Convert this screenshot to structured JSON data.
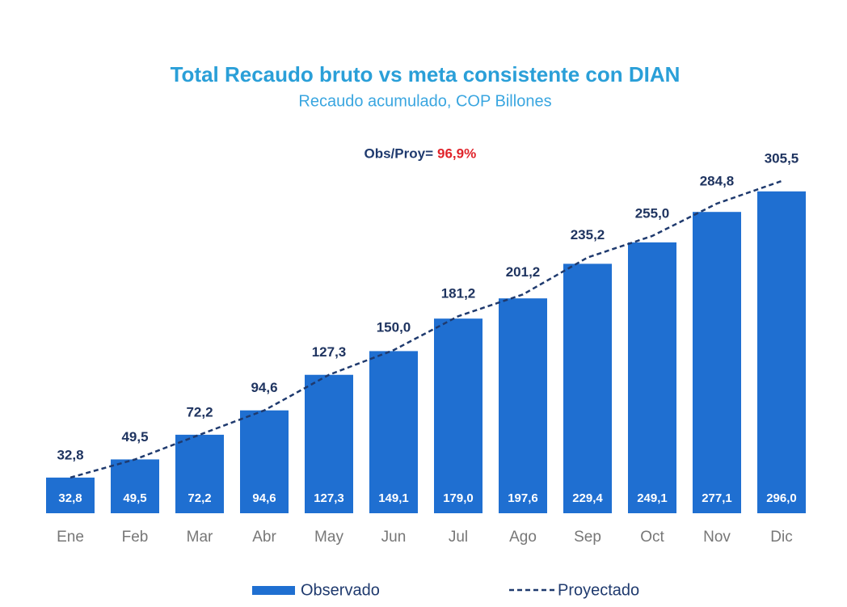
{
  "chart_data": {
    "type": "bar_line",
    "title": "Total Recaudo bruto vs meta consistente con DIAN",
    "subtitle": "Recaudo acumulado, COP Billones",
    "annotation": [
      "Obs/Proy=",
      "96,9%"
    ],
    "categories": [
      "Ene",
      "Feb",
      "Mar",
      "Abr",
      "May",
      "Jun",
      "Jul",
      "Ago",
      "Sep",
      "Oct",
      "Nov",
      "Dic"
    ],
    "series": [
      {
        "name": "Observado",
        "type": "bar",
        "color": "#1f6fd1",
        "values": [
          32.8,
          49.5,
          72.2,
          94.6,
          127.3,
          149.1,
          179.0,
          197.6,
          229.4,
          249.1,
          277.1,
          296.0
        ],
        "value_labels": [
          "32,8",
          "49,5",
          "72,2",
          "94,6",
          "127,3",
          "149,1",
          "179,0",
          "197,6",
          "229,4",
          "249,1",
          "277,1",
          "296,0"
        ]
      },
      {
        "name": "Proyectado",
        "type": "line",
        "color": "#1f3a6e",
        "values": [
          32.8,
          49.5,
          72.2,
          94.6,
          127.3,
          150.0,
          181.2,
          201.2,
          235.2,
          255.0,
          284.8,
          305.5
        ],
        "value_labels": [
          "32,8",
          "49,5",
          "72,2",
          "94,6",
          "127,3",
          "150,0",
          "181,2",
          "201,2",
          "235,2",
          "255,0",
          "284,8",
          "305,5"
        ]
      }
    ]
  }
}
